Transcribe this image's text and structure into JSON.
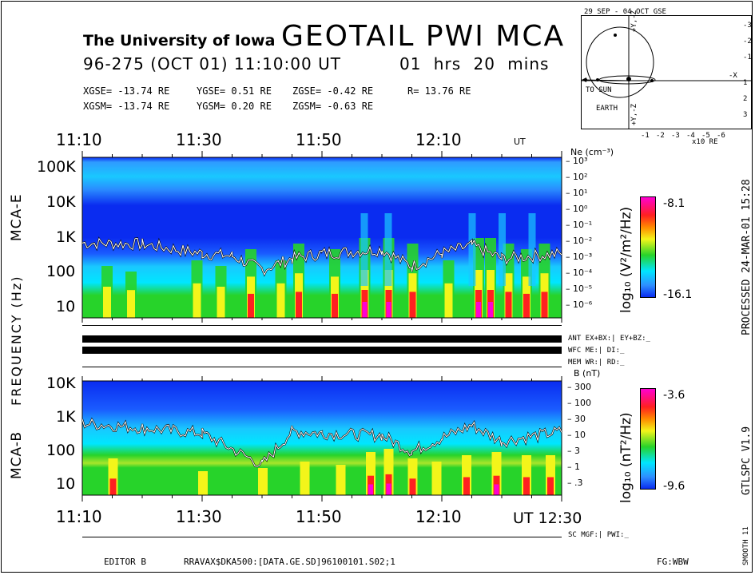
{
  "header": {
    "university": "The University of Iowa",
    "title": "GEOTAIL PWI MCA",
    "date_line": "96-275 (OCT 01) 11:10:00 UT",
    "duration": "01 hrs 20 mins",
    "xgse": "XGSE= -13.74 RE",
    "ygse": "YGSE= 0.51 RE",
    "zgse": "ZGSE= -0.42 RE",
    "r": "R= 13.76 RE",
    "xgsm": "XGSM= -13.74 RE",
    "ygsm": "YGSM= 0.20 RE",
    "zgsm": "ZGSM= -0.63 RE"
  },
  "orbit": {
    "title": "29 SEP - 04 OCT GSE",
    "to_sun": "TO SUN",
    "earth": "EARTH",
    "x_ticks": [
      "-1",
      "-2",
      "-3",
      "-4",
      "-5",
      "-6"
    ],
    "y_ticks": [
      "-3",
      "-2",
      "-1",
      "1",
      "2",
      "3"
    ],
    "x_label": "-X",
    "y_label": "+Y,-Z",
    "y_label_bottom": "+Y,-Z",
    "units": "x10 RE"
  },
  "time_axis": {
    "top_labels": [
      "11:10",
      "11:30",
      "11:50",
      "12:10"
    ],
    "top_ut": "UT",
    "bottom_labels": [
      "11:10",
      "11:30",
      "11:50",
      "12:10"
    ],
    "bottom_ut": "UT 12:30"
  },
  "panel_e": {
    "name": "MCA-E",
    "y_ticks": [
      "100K",
      "10K",
      "1K",
      "100",
      "10"
    ],
    "ne_label": "Ne (cm⁻³)",
    "ne_ticks": [
      "10³",
      "10²",
      "10¹",
      "10⁰",
      "10⁻¹",
      "10⁻²",
      "10⁻³",
      "10⁻⁴",
      "10⁻⁵",
      "10⁻⁶"
    ],
    "colorbar_max": "-8.1",
    "colorbar_min": "-16.1",
    "colorbar_label": "log₁₀ (V²/m²/Hz)"
  },
  "panel_b": {
    "name": "MCA-B",
    "y_ticks": [
      "10K",
      "1K",
      "100",
      "10"
    ],
    "b_label": "B (nT)",
    "b_ticks": [
      "300",
      "100",
      "30",
      "10",
      "3",
      "1",
      ".3"
    ],
    "colorbar_max": "-3.6",
    "colorbar_min": "-9.6",
    "colorbar_label": "log₁₀ (nT²/Hz)"
  },
  "frequency_label": "FREQUENCY (Hz)",
  "status": {
    "ant": "ANT EX+BX:| EY+BZ:_",
    "wfc": "WFC ME:| DI:_",
    "mem": "MEM WR:| RD:_",
    "sc": "SC MGF:| PWI:_"
  },
  "side": {
    "processed": "PROCESSED 24-MAR-01 15:28",
    "version": "GTLSPC V1.9",
    "smooth": "SMOOTH 11"
  },
  "footer": {
    "editor": "EDITOR B",
    "path": "RRAVAX$DKA500:[DATA.GE.SD]96100101.S02;1",
    "fg": "FG:WBW"
  },
  "colors": {
    "background_blue": "#0a2cf0",
    "cyan": "#00e6ff",
    "green": "#27d32a",
    "yellow": "#f3f51a",
    "red": "#ff2020",
    "magenta": "#ff00d2"
  },
  "chart_data": [
    {
      "type": "heatmap",
      "title": "MCA-E",
      "xlabel": "UT",
      "ylabel": "FREQUENCY (Hz)",
      "x_range": [
        "11:10",
        "12:30"
      ],
      "y_scale": "log",
      "y_ticks": [
        10,
        100,
        1000,
        10000,
        100000
      ],
      "colorbar_range": [
        -16.1,
        -8.1
      ],
      "colorbar_label": "log10 (V²/m²/Hz)",
      "overlay_line": "Ne (cm⁻³)",
      "overlay_line_approx_hz": [
        {
          "t": "11:10",
          "hz": 700
        },
        {
          "t": "11:20",
          "hz": 650
        },
        {
          "t": "11:30",
          "hz": 350
        },
        {
          "t": "11:35",
          "hz": 300
        },
        {
          "t": "11:40",
          "hz": 120
        },
        {
          "t": "11:45",
          "hz": 250
        },
        {
          "t": "11:50",
          "hz": 350
        },
        {
          "t": "12:00",
          "hz": 450
        },
        {
          "t": "12:05",
          "hz": 150
        },
        {
          "t": "12:10",
          "hz": 350
        },
        {
          "t": "12:15",
          "hz": 600
        },
        {
          "t": "12:20",
          "hz": 250
        },
        {
          "t": "12:30",
          "hz": 350
        }
      ]
    },
    {
      "type": "heatmap",
      "title": "MCA-B",
      "xlabel": "UT",
      "ylabel": "FREQUENCY (Hz)",
      "x_range": [
        "11:10",
        "12:30"
      ],
      "y_scale": "log",
      "y_ticks": [
        10,
        100,
        1000,
        10000
      ],
      "colorbar_range": [
        -9.6,
        -3.6
      ],
      "colorbar_label": "log10 (nT²/Hz)",
      "overlay_line": "B (nT)",
      "overlay_line_approx_hz": [
        {
          "t": "11:10",
          "hz": 700
        },
        {
          "t": "11:20",
          "hz": 500
        },
        {
          "t": "11:30",
          "hz": 350
        },
        {
          "t": "11:40",
          "hz": 40
        },
        {
          "t": "11:45",
          "hz": 400
        },
        {
          "t": "11:50",
          "hz": 350
        },
        {
          "t": "12:00",
          "hz": 300
        },
        {
          "t": "12:05",
          "hz": 100
        },
        {
          "t": "12:10",
          "hz": 250
        },
        {
          "t": "12:15",
          "hz": 600
        },
        {
          "t": "12:20",
          "hz": 200
        },
        {
          "t": "12:30",
          "hz": 400
        }
      ]
    }
  ]
}
